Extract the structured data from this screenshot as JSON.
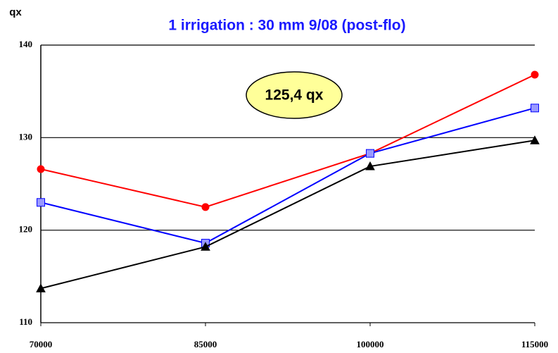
{
  "chart_data": {
    "type": "line",
    "title": "1 irrigation : 30 mm 9/08 (post-flo)",
    "ylabel": "qx",
    "annotation": "125,4 qx",
    "x": [
      70000,
      85000,
      100000,
      115000
    ],
    "xlim": [
      70000,
      115000
    ],
    "xticks": [
      70000,
      85000,
      100000,
      115000
    ],
    "ylim": [
      110,
      140
    ],
    "yticks": [
      110,
      120,
      130,
      140
    ],
    "grid": true,
    "series": [
      {
        "color": "#ff0000",
        "marker": "circle",
        "values": [
          126.6,
          122.5,
          128.3,
          136.8
        ]
      },
      {
        "color": "#0000ff",
        "marker": "square",
        "values": [
          123.0,
          118.6,
          128.3,
          133.2
        ]
      },
      {
        "color": "#000000",
        "marker": "triangle",
        "values": [
          113.7,
          118.2,
          126.9,
          129.7
        ]
      }
    ]
  }
}
